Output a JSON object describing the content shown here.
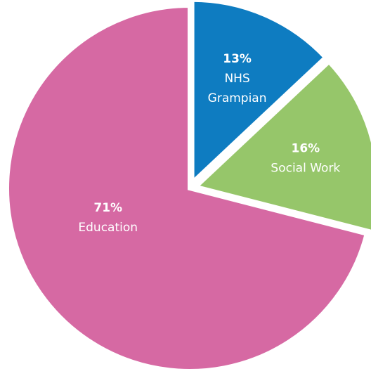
{
  "chart_data": {
    "type": "pie",
    "title": "",
    "slices": [
      {
        "label_lines": [
          "NHS",
          "Grampian"
        ],
        "value": 13,
        "percent_label": "13%",
        "color": "#0e7cc1",
        "exploded": true
      },
      {
        "label_lines": [
          "Social Work"
        ],
        "value": 16,
        "percent_label": "16%",
        "color": "#96c66a",
        "exploded": true
      },
      {
        "label_lines": [
          "Education"
        ],
        "value": 71,
        "percent_label": "71%",
        "color": "#d669a3",
        "exploded": false
      }
    ],
    "legend": "none"
  }
}
